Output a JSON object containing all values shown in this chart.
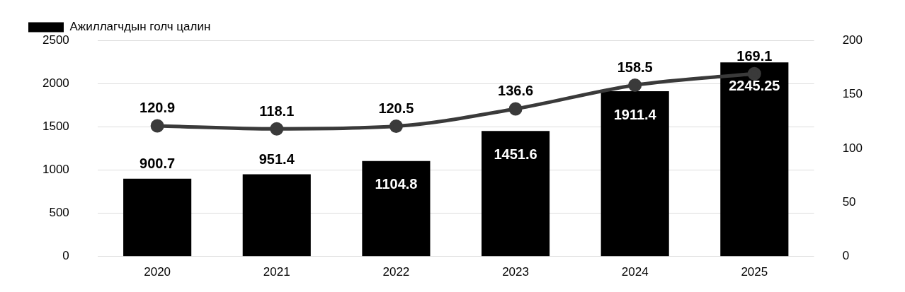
{
  "chart_data": {
    "type": "bar",
    "categories": [
      "2020",
      "2021",
      "2022",
      "2023",
      "2024",
      "2025"
    ],
    "series": [
      {
        "name": "Ажиллагчдын голч цалин",
        "color": "#000000",
        "values": [
          900.7,
          951.4,
          1104.8,
          1451.6,
          1911.4,
          2245.25
        ]
      },
      {
        "type": "line",
        "axis": "y2",
        "color": "#3a3a3a",
        "values": [
          120.9,
          118.1,
          120.5,
          136.6,
          158.5,
          169.1
        ]
      }
    ],
    "ylim": [
      0,
      2500
    ],
    "yticks": [
      0,
      500,
      1000,
      1500,
      2000,
      2500
    ],
    "y2lim": [
      0,
      200
    ],
    "y2ticks": [
      0,
      50,
      100,
      150,
      200
    ],
    "data_labels": true,
    "legend": "top left",
    "marker": "circle",
    "grid": "y"
  }
}
